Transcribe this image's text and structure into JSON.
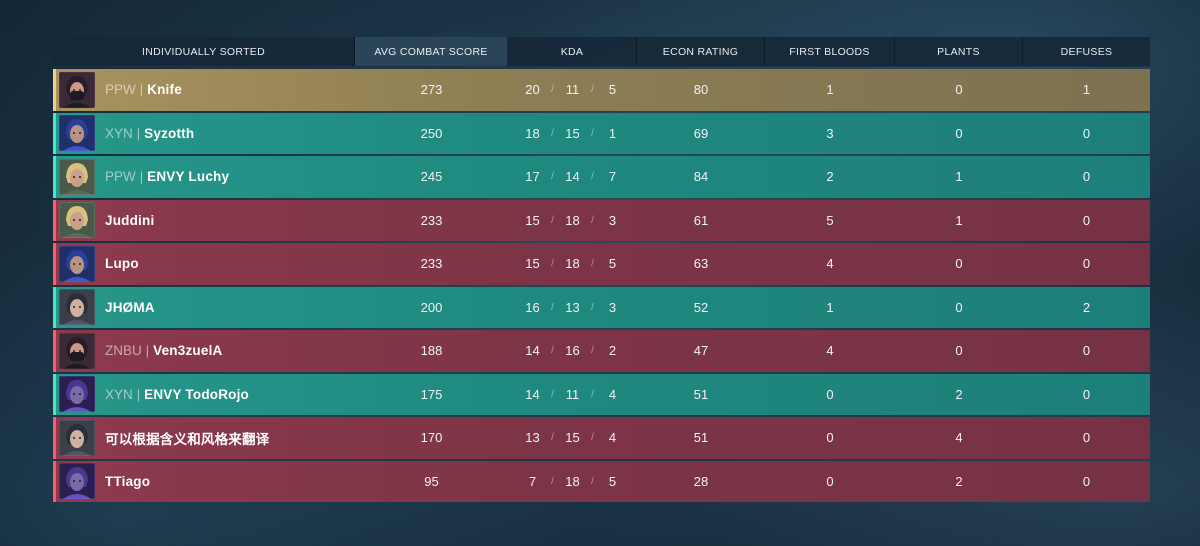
{
  "headers": {
    "name": "INDIVIDUALLY SORTED",
    "acs": "AVG COMBAT SCORE",
    "kda": "KDA",
    "econ": "ECON RATING",
    "first_bloods": "FIRST BLOODS",
    "plants": "PLANTS",
    "defuses": "DEFUSES"
  },
  "colors": {
    "gold_team": "#a8935e",
    "ally_team": "#27978a",
    "enemy_team": "#8e3a4d"
  },
  "players": [
    {
      "tag": "PPW",
      "name": "Knife",
      "team": "gold",
      "agent_icon": "masked-agent-avatar-icon",
      "acs": "273",
      "kills": "20",
      "deaths": "11",
      "assists": "5",
      "econ": "80",
      "first_bloods": "1",
      "plants": "0",
      "defuses": "1"
    },
    {
      "tag": "XYN",
      "name": "Syzotth",
      "team": "green",
      "agent_icon": "blue-hooded-agent-avatar-icon",
      "acs": "250",
      "kills": "18",
      "deaths": "15",
      "assists": "1",
      "econ": "69",
      "first_bloods": "3",
      "plants": "0",
      "defuses": "0"
    },
    {
      "tag": "PPW",
      "name": "ENVY Luchy",
      "team": "green",
      "agent_icon": "blonde-agent-avatar-icon",
      "acs": "245",
      "kills": "17",
      "deaths": "14",
      "assists": "7",
      "econ": "84",
      "first_bloods": "2",
      "plants": "1",
      "defuses": "0"
    },
    {
      "tag": "",
      "name": "Juddini",
      "team": "red",
      "agent_icon": "blonde-agent-avatar-icon",
      "acs": "233",
      "kills": "15",
      "deaths": "18",
      "assists": "3",
      "econ": "61",
      "first_bloods": "5",
      "plants": "1",
      "defuses": "0"
    },
    {
      "tag": "",
      "name": "Lupo",
      "team": "red",
      "agent_icon": "blue-hooded-agent-avatar-icon",
      "acs": "233",
      "kills": "15",
      "deaths": "18",
      "assists": "5",
      "econ": "63",
      "first_bloods": "4",
      "plants": "0",
      "defuses": "0"
    },
    {
      "tag": "",
      "name": "JHØMA",
      "team": "green",
      "agent_icon": "dark-haired-agent-avatar-icon",
      "acs": "200",
      "kills": "16",
      "deaths": "13",
      "assists": "3",
      "econ": "52",
      "first_bloods": "1",
      "plants": "0",
      "defuses": "2"
    },
    {
      "tag": "ZNBU",
      "name": "Ven3zuelA",
      "team": "red",
      "agent_icon": "masked-agent-avatar-icon",
      "acs": "188",
      "kills": "14",
      "deaths": "16",
      "assists": "2",
      "econ": "47",
      "first_bloods": "4",
      "plants": "0",
      "defuses": "0"
    },
    {
      "tag": "XYN",
      "name": "ENVY TodoRojo",
      "team": "green",
      "agent_icon": "purple-hooded-agent-avatar-icon",
      "acs": "175",
      "kills": "14",
      "deaths": "11",
      "assists": "4",
      "econ": "51",
      "first_bloods": "0",
      "plants": "2",
      "defuses": "0"
    },
    {
      "tag": "",
      "name": "可以根据含义和风格来翻译",
      "team": "red",
      "agent_icon": "dark-haired-agent-avatar-icon",
      "acs": "170",
      "kills": "13",
      "deaths": "15",
      "assists": "4",
      "econ": "51",
      "first_bloods": "0",
      "plants": "4",
      "defuses": "0"
    },
    {
      "tag": "",
      "name": "TTiago",
      "team": "red",
      "agent_icon": "purple-hooded-agent-avatar-icon",
      "acs": "95",
      "kills": "7",
      "deaths": "18",
      "assists": "5",
      "econ": "28",
      "first_bloods": "0",
      "plants": "2",
      "defuses": "0"
    }
  ]
}
